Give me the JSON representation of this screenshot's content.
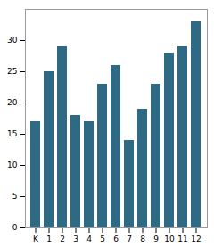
{
  "chart_data": {
    "type": "bar",
    "categories": [
      "K",
      "1",
      "2",
      "3",
      "4",
      "5",
      "6",
      "7",
      "8",
      "9",
      "10",
      "11",
      "12"
    ],
    "values": [
      17,
      25,
      29,
      18,
      17,
      23,
      26,
      14,
      19,
      23,
      28,
      29,
      33
    ],
    "color": "#2e6a84",
    "ylim": [
      0,
      35
    ],
    "yticks": [
      0,
      5,
      10,
      15,
      20,
      25,
      30
    ],
    "grid": false
  }
}
